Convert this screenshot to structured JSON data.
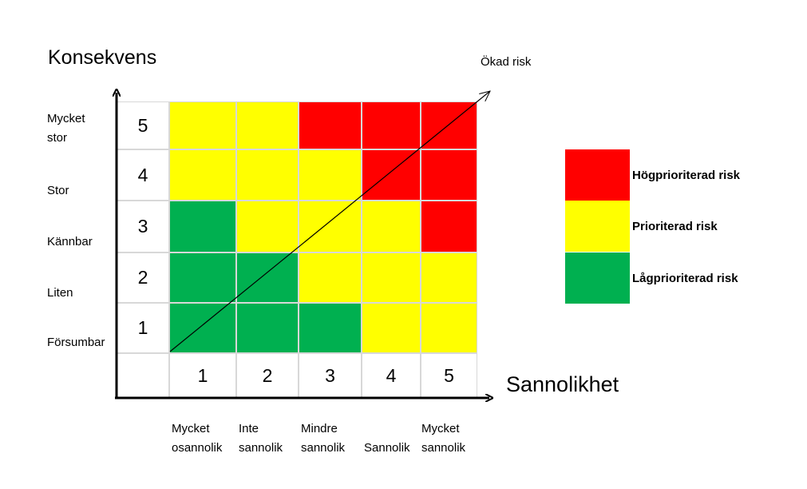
{
  "axes": {
    "y_title": "Konsekvens",
    "x_title": "Sannolikhet",
    "diagonal_label": "Ökad risk"
  },
  "rows": [
    {
      "num": "5",
      "label_lines": [
        "Mycket",
        "stor"
      ]
    },
    {
      "num": "4",
      "label_lines": [
        "Stor"
      ]
    },
    {
      "num": "3",
      "label_lines": [
        "Kännbar"
      ]
    },
    {
      "num": "2",
      "label_lines": [
        "Liten"
      ]
    },
    {
      "num": "1",
      "label_lines": [
        "Försumbar"
      ]
    }
  ],
  "columns": [
    {
      "num": "1",
      "label_lines": [
        "Mycket",
        "osannolik"
      ]
    },
    {
      "num": "2",
      "label_lines": [
        "Inte",
        "sannolik"
      ]
    },
    {
      "num": "3",
      "label_lines": [
        "Mindre",
        "sannolik"
      ]
    },
    {
      "num": "4",
      "label_lines": [
        "",
        "Sannolik"
      ]
    },
    {
      "num": "5",
      "label_lines": [
        "Mycket",
        "sannolik"
      ]
    }
  ],
  "matrix": [
    [
      "yellow",
      "yellow",
      "red",
      "red",
      "red"
    ],
    [
      "yellow",
      "yellow",
      "yellow",
      "red",
      "red"
    ],
    [
      "green",
      "yellow",
      "yellow",
      "yellow",
      "red"
    ],
    [
      "green",
      "green",
      "yellow",
      "yellow",
      "yellow"
    ],
    [
      "green",
      "green",
      "green",
      "yellow",
      "yellow"
    ]
  ],
  "colors": {
    "red": "#ff0000",
    "yellow": "#ffff00",
    "green": "#00b050"
  },
  "legend": [
    {
      "color": "red",
      "label": "Högprioriterad risk"
    },
    {
      "color": "yellow",
      "label": "Prioriterad risk"
    },
    {
      "color": "green",
      "label": "Lågprioriterad risk"
    }
  ]
}
